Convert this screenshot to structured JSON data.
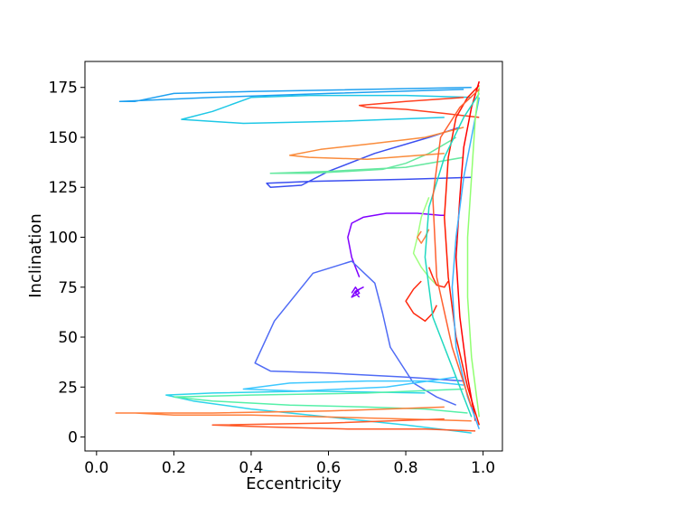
{
  "chart_data": {
    "type": "line",
    "title": "",
    "xlabel": "Eccentricity",
    "ylabel": "Inclination",
    "xlim": [
      -0.03,
      1.05
    ],
    "ylim": [
      -7,
      188
    ],
    "xticks": [
      0.0,
      0.2,
      0.4,
      0.6,
      0.8,
      1.0
    ],
    "xtick_labels": [
      "0.0",
      "0.2",
      "0.4",
      "0.6",
      "0.8",
      "1.0"
    ],
    "yticks": [
      0,
      25,
      50,
      75,
      100,
      125,
      150,
      175
    ],
    "ytick_labels": [
      "0",
      "25",
      "50",
      "75",
      "100",
      "125",
      "150",
      "175"
    ],
    "grid": false,
    "legend": "none",
    "colormap": "rainbow",
    "series": [
      {
        "color": "#8000ff",
        "x": [
          0.66,
          0.67,
          0.68,
          0.66,
          0.67,
          0.69,
          0.68,
          0.67,
          0.68
        ],
        "y": [
          72,
          75,
          72,
          70,
          73,
          75,
          74,
          72,
          70
        ]
      },
      {
        "color": "#8000ff",
        "x": [
          0.68,
          0.67,
          0.66,
          0.65,
          0.66,
          0.69,
          0.75,
          0.83,
          0.89,
          0.9
        ],
        "y": [
          80,
          85,
          90,
          100,
          107,
          110,
          112,
          112,
          111,
          111
        ]
      },
      {
        "color": "#4f6bf5",
        "x": [
          0.93,
          0.88,
          0.82,
          0.76,
          0.74,
          0.72,
          0.66,
          0.56,
          0.46,
          0.41,
          0.45,
          0.6,
          0.8,
          0.95
        ],
        "y": [
          16,
          20,
          27,
          45,
          62,
          77,
          88,
          82,
          58,
          37,
          33,
          32,
          30,
          28
        ]
      },
      {
        "color": "#3a4ef0",
        "x": [
          0.94,
          0.86,
          0.72,
          0.6,
          0.53,
          0.45,
          0.44,
          0.56,
          0.8,
          0.97
        ],
        "y": [
          155,
          150,
          142,
          133,
          126,
          125,
          127,
          128,
          129,
          130
        ]
      },
      {
        "color": "#1ec8e6",
        "x": [
          0.97,
          0.8,
          0.55,
          0.4,
          0.3,
          0.22,
          0.38,
          0.62,
          0.9
        ],
        "y": [
          170,
          171,
          171,
          170,
          163,
          159,
          157,
          158,
          160
        ]
      },
      {
        "color": "#1ea0f0",
        "x": [
          0.97,
          0.7,
          0.4,
          0.2,
          0.1,
          0.06,
          0.3,
          0.6,
          0.95
        ],
        "y": [
          175,
          174,
          173,
          172,
          168,
          168,
          170,
          172,
          174
        ]
      },
      {
        "color": "#2dd4ea",
        "x": [
          0.97,
          0.8,
          0.6,
          0.4,
          0.25,
          0.18,
          0.3,
          0.55,
          0.85
        ],
        "y": [
          2,
          6,
          10,
          14,
          18,
          21,
          22,
          23,
          22
        ]
      },
      {
        "color": "#3ec8ff",
        "x": [
          0.95,
          0.85,
          0.7,
          0.5,
          0.38,
          0.52,
          0.75,
          0.93
        ],
        "y": [
          26,
          28,
          28,
          27,
          24,
          23,
          25,
          30
        ]
      },
      {
        "color": "#66e8a0",
        "x": [
          0.93,
          0.86,
          0.8,
          0.74,
          0.65,
          0.55,
          0.45,
          0.6,
          0.8,
          0.95
        ],
        "y": [
          150,
          142,
          137,
          134,
          133,
          132,
          132,
          133,
          135,
          140
        ]
      },
      {
        "color": "#55f0a8",
        "x": [
          0.96,
          0.85,
          0.7,
          0.5,
          0.3,
          0.2,
          0.4,
          0.7,
          0.95
        ],
        "y": [
          12,
          14,
          15,
          16,
          18,
          20,
          21,
          22,
          24
        ]
      },
      {
        "color": "#a0ff80",
        "x": [
          0.86,
          0.84,
          0.83,
          0.82,
          0.84,
          0.86,
          0.88
        ],
        "y": [
          120,
          110,
          100,
          92,
          85,
          80,
          76
        ]
      },
      {
        "color": "#fa8c3c",
        "x": [
          0.95,
          0.85,
          0.72,
          0.58,
          0.5,
          0.55,
          0.7,
          0.9
        ],
        "y": [
          155,
          150,
          147,
          144,
          141,
          140,
          139,
          142
        ]
      },
      {
        "color": "#ff7f3c",
        "x": [
          0.97,
          0.8,
          0.6,
          0.4,
          0.2,
          0.1,
          0.05,
          0.3,
          0.6,
          0.9
        ],
        "y": [
          8,
          9,
          10,
          11,
          11,
          12,
          12,
          12,
          13,
          15
        ]
      },
      {
        "color": "#ff5a28",
        "x": [
          0.98,
          0.85,
          0.65,
          0.45,
          0.3,
          0.6,
          0.9
        ],
        "y": [
          3,
          4,
          4,
          5,
          6,
          7,
          9
        ]
      },
      {
        "color": "#ff4020",
        "x": [
          0.99,
          0.9,
          0.8,
          0.7,
          0.68,
          0.8,
          0.95
        ],
        "y": [
          160,
          162,
          164,
          165,
          166,
          168,
          170
        ]
      },
      {
        "color": "#ff2a10",
        "x": [
          0.84,
          0.82,
          0.8,
          0.82,
          0.85,
          0.87,
          0.88
        ],
        "y": [
          78,
          74,
          68,
          62,
          58,
          62,
          66
        ]
      },
      {
        "color": "#ff2a10",
        "x": [
          0.86,
          0.87,
          0.88,
          0.9,
          0.91
        ],
        "y": [
          85,
          80,
          76,
          75,
          78
        ]
      },
      {
        "color": "#ff1a00",
        "x": [
          0.99,
          0.96,
          0.93,
          0.91,
          0.9,
          0.91,
          0.93,
          0.96,
          0.99
        ],
        "y": [
          176,
          170,
          160,
          140,
          110,
          80,
          50,
          25,
          6
        ]
      },
      {
        "color": "#ff0000",
        "x": [
          0.99,
          0.97,
          0.95,
          0.94,
          0.93,
          0.94,
          0.96,
          0.98
        ],
        "y": [
          178,
          165,
          145,
          120,
          90,
          60,
          30,
          8
        ]
      },
      {
        "color": "#ff8040",
        "x": [
          0.84,
          0.83,
          0.84,
          0.85,
          0.86
        ],
        "y": [
          103,
          100,
          97,
          100,
          104
        ]
      },
      {
        "color": "#20d8c0",
        "x": [
          0.99,
          0.95,
          0.9,
          0.86,
          0.85,
          0.87,
          0.92,
          0.97
        ],
        "y": [
          172,
          160,
          140,
          115,
          90,
          60,
          35,
          10
        ]
      },
      {
        "color": "#40b0ff",
        "x": [
          0.99,
          0.97,
          0.95,
          0.93,
          0.92,
          0.93,
          0.96,
          0.99
        ],
        "y": [
          170,
          150,
          130,
          100,
          75,
          45,
          20,
          4
        ]
      },
      {
        "color": "#90ff70",
        "x": [
          0.99,
          0.98,
          0.97,
          0.96,
          0.96,
          0.97,
          0.99
        ],
        "y": [
          175,
          160,
          130,
          100,
          70,
          40,
          10
        ]
      },
      {
        "color": "#ff6030",
        "x": [
          0.99,
          0.94,
          0.89,
          0.87,
          0.88,
          0.92,
          0.97
        ],
        "y": [
          174,
          165,
          150,
          120,
          80,
          45,
          15
        ]
      }
    ]
  }
}
